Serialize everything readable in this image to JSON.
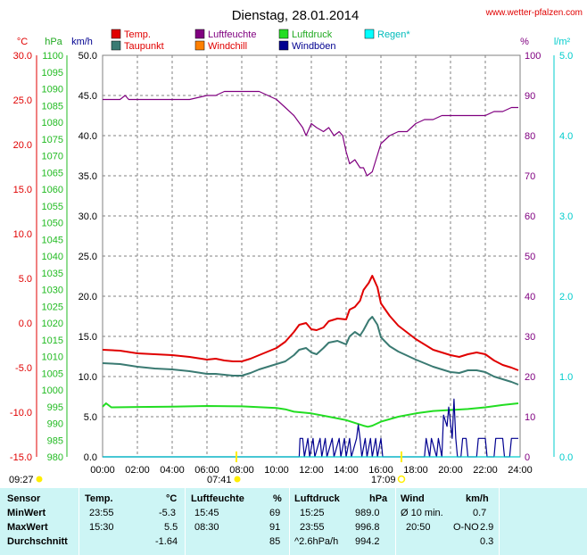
{
  "title": "Dienstag, 28.01.2014",
  "source": "www.wetter-pfalzen.com",
  "colors": {
    "temp": "#e00000",
    "taupunkt": "#3a7a72",
    "luftfeuchte": "#800080",
    "windchill": "#ff8000",
    "luftdruck": "#22dd22",
    "windboeen": "#000090",
    "regen": "#00cccc"
  },
  "legend": {
    "temp": "Temp.",
    "taupunkt": "Taupunkt",
    "luftfeuchte": "Luftfeuchte",
    "windchill": "Windchill",
    "luftdruck": "Luftdruck",
    "windboeen": "Windböen",
    "regen": "Regen*"
  },
  "units": {
    "temp": "°C",
    "pressure": "hPa",
    "wind": "km/h",
    "humidity": "%",
    "rain": "l/m²"
  },
  "sun": {
    "sunrise": "07:41",
    "sunset": "17:09",
    "moonrise": "09:27"
  },
  "chart_data": {
    "type": "line",
    "x_ticks": [
      "00:00",
      "02:00",
      "04:00",
      "06:00",
      "08:00",
      "10:00",
      "12:00",
      "14:00",
      "16:00",
      "18:00",
      "20:00",
      "22:00",
      "24:00"
    ],
    "axes": {
      "temp": {
        "labels": [
          "30.0",
          "25.0",
          "20.0",
          "15.0",
          "10.0",
          "5.0",
          "0.0",
          "-5.0",
          "-10.0",
          "-15.0"
        ],
        "min": -15,
        "max": 30
      },
      "pressure": {
        "labels": [
          "1100",
          "1095",
          "1090",
          "1085",
          "1080",
          "1075",
          "1070",
          "1065",
          "1060",
          "1055",
          "1050",
          "1045",
          "1040",
          "1035",
          "1030",
          "1025",
          "1020",
          "1015",
          "1010",
          "1005",
          "1000",
          "995",
          "990",
          "985",
          "980"
        ],
        "min": 980,
        "max": 1100
      },
      "wind": {
        "labels": [
          "50.0",
          "45.0",
          "40.0",
          "35.0",
          "30.0",
          "25.0",
          "20.0",
          "15.0",
          "10.0",
          "5.0",
          "0.0"
        ],
        "min": 0,
        "max": 50
      },
      "humidity": {
        "labels": [
          "100",
          "90",
          "80",
          "70",
          "60",
          "50",
          "40",
          "30",
          "20",
          "10",
          "0"
        ],
        "min": 0,
        "max": 100
      },
      "rain": {
        "labels": [
          "5.0",
          "4.0",
          "3.0",
          "2.0",
          "1.0",
          "0.0"
        ],
        "min": 0,
        "max": 5
      }
    },
    "series": [
      {
        "name": "Temp.",
        "axis": "temp",
        "x": [
          0,
          1,
          2,
          3,
          4,
          5,
          6,
          6.5,
          7,
          7.5,
          8,
          8.5,
          9,
          10,
          10.5,
          11,
          11.3,
          11.7,
          12,
          12.3,
          12.7,
          13,
          13.5,
          14,
          14.2,
          14.5,
          14.8,
          15,
          15.3,
          15.5,
          15.8,
          16,
          16.5,
          17,
          18,
          19,
          20,
          20.5,
          21,
          21.5,
          22,
          22.5,
          23,
          23.5,
          23.9
        ],
        "values": [
          -3.0,
          -3.1,
          -3.4,
          -3.5,
          -3.6,
          -3.8,
          -4.1,
          -4.0,
          -4.2,
          -4.3,
          -4.3,
          -4.0,
          -3.6,
          -2.8,
          -2.1,
          -1.0,
          -0.2,
          0.0,
          -0.7,
          -0.8,
          -0.5,
          0.2,
          0.5,
          0.4,
          1.5,
          1.8,
          2.5,
          3.7,
          4.5,
          5.3,
          4.0,
          2.2,
          0.8,
          -0.3,
          -1.8,
          -3.0,
          -3.6,
          -3.8,
          -3.5,
          -3.3,
          -3.5,
          -4.2,
          -4.7,
          -5.0,
          -5.3
        ]
      },
      {
        "name": "Taupunkt",
        "axis": "temp",
        "x": [
          0,
          1,
          2,
          3,
          4,
          5,
          6,
          6.5,
          7,
          7.5,
          8,
          8.5,
          9,
          10,
          10.5,
          11,
          11.3,
          11.7,
          12,
          12.3,
          12.7,
          13,
          13.5,
          14,
          14.2,
          14.5,
          14.8,
          15,
          15.3,
          15.5,
          15.8,
          16,
          16.5,
          17,
          18,
          19,
          20,
          20.5,
          21,
          21.5,
          22,
          22.5,
          23,
          23.5,
          23.9
        ],
        "values": [
          -4.5,
          -4.6,
          -4.9,
          -5.1,
          -5.2,
          -5.4,
          -5.7,
          -5.7,
          -5.8,
          -5.9,
          -5.9,
          -5.6,
          -5.2,
          -4.6,
          -4.3,
          -3.6,
          -3.0,
          -2.8,
          -3.3,
          -3.5,
          -2.8,
          -2.2,
          -2.0,
          -2.4,
          -1.5,
          -1.0,
          -1.4,
          -0.8,
          0.3,
          0.7,
          -0.2,
          -1.6,
          -2.6,
          -3.2,
          -4.1,
          -4.9,
          -5.5,
          -5.6,
          -5.3,
          -5.3,
          -5.5,
          -6.0,
          -6.3,
          -6.6,
          -6.9
        ]
      },
      {
        "name": "Luftfeuchte",
        "axis": "humidity",
        "x": [
          0,
          1,
          1.3,
          1.5,
          2,
          4,
          5,
          6,
          6.5,
          7,
          7.5,
          8,
          8.5,
          9,
          9.5,
          10,
          10.5,
          11,
          11.5,
          11.7,
          12,
          12.3,
          12.7,
          13,
          13.3,
          13.6,
          13.8,
          14,
          14.2,
          14.5,
          14.8,
          15,
          15.2,
          15.5,
          16,
          16.5,
          17,
          17.5,
          18,
          18.5,
          19,
          19.5,
          20,
          20.5,
          21,
          21.5,
          22,
          22.5,
          23,
          23.5,
          23.9
        ],
        "values": [
          89,
          89,
          90,
          89,
          89,
          89,
          89,
          90,
          90,
          91,
          91,
          91,
          91,
          91,
          90,
          89,
          87,
          85,
          82,
          80,
          83,
          82,
          81,
          82,
          80,
          81,
          80,
          76,
          73,
          74,
          72,
          72,
          70,
          71,
          78,
          80,
          81,
          81,
          83,
          84,
          84,
          85,
          85,
          85,
          85,
          85,
          85,
          86,
          86,
          87,
          87
        ]
      },
      {
        "name": "Luftdruck",
        "axis": "pressure",
        "x": [
          0,
          0.2,
          0.5,
          2,
          4,
          6,
          8,
          10,
          10.5,
          11,
          12,
          13,
          14,
          15,
          15.25,
          15.5,
          16,
          17,
          18,
          19,
          20,
          21,
          22,
          23,
          23.9
        ],
        "values": [
          995.0,
          996.0,
          994.8,
          994.9,
          995.0,
          995.2,
          995.1,
          994.6,
          994.2,
          993.5,
          993.0,
          992.0,
          991.0,
          989.3,
          989.0,
          989.3,
          990.5,
          992.0,
          993.0,
          993.7,
          994.0,
          994.3,
          994.8,
          995.5,
          996.0
        ]
      },
      {
        "name": "Windböen",
        "axis": "wind",
        "x": [
          0,
          11,
          11.3,
          11.35,
          11.5,
          11.6,
          11.8,
          11.9,
          12.1,
          12.2,
          12.5,
          12.6,
          12.8,
          12.9,
          13.2,
          13.3,
          13.6,
          13.7,
          13.9,
          14.0,
          14.2,
          14.3,
          14.6,
          14.7,
          14.8,
          14.9,
          15.1,
          15.2,
          15.4,
          15.5,
          15.7,
          15.8,
          16.0,
          16.1,
          17.5,
          18.5,
          18.6,
          18.8,
          18.9,
          19.2,
          19.3,
          19.5,
          19.6,
          19.8,
          19.9,
          20.1,
          20.2,
          20.3,
          20.4,
          20.6,
          20.7,
          20.9,
          21.0,
          21.5,
          21.6,
          22.0,
          22.1,
          22.5,
          22.6,
          23.0,
          23.1,
          23.4,
          23.5,
          23.9
        ],
        "values": [
          0,
          0,
          0,
          2.3,
          2.3,
          0,
          2.3,
          0,
          2.3,
          0,
          2.3,
          0,
          2.3,
          0,
          2.3,
          0,
          2.3,
          0,
          2.3,
          0,
          2.3,
          0,
          2.3,
          4.0,
          2.3,
          0,
          2.3,
          0,
          2.3,
          0,
          2.3,
          0,
          2.3,
          0,
          0,
          0,
          2.3,
          0,
          2.3,
          0,
          2.3,
          0,
          5.2,
          3.8,
          6.2,
          2.3,
          7.2,
          2.3,
          0,
          0,
          2.3,
          2.3,
          0,
          0,
          2.3,
          2.3,
          0,
          0,
          2.3,
          2.3,
          0,
          0,
          2.3,
          2.3
        ]
      },
      {
        "name": "Regen*",
        "axis": "rain",
        "x": [
          0,
          24
        ],
        "values": [
          0,
          0
        ]
      }
    ]
  },
  "table": {
    "headers": {
      "sensor": "Sensor",
      "temp": "Temp.",
      "temp_unit": "°C",
      "hum": "Luftfeuchte",
      "hum_unit": "%",
      "press": "Luftdruck",
      "press_unit": "hPa",
      "wind": "Wind",
      "wind_unit": "km/h"
    },
    "rows": [
      {
        "label": "MinWert",
        "t_time": "23:55",
        "t_val": "-5.3",
        "h_time": "15:45",
        "h_val": "69",
        "p_time": "15:25",
        "p_val": "989.0",
        "w_label": "Ø 10 min.",
        "w_dir": "",
        "w_val": "0.7"
      },
      {
        "label": "MaxWert",
        "t_time": "15:30",
        "t_val": "5.5",
        "h_time": "08:30",
        "h_val": "91",
        "p_time": "23:55",
        "p_val": "996.8",
        "w_label": "20:50",
        "w_dir": "O-NO",
        "w_val": "2.9"
      },
      {
        "label": "Durchschnitt",
        "t_time": "",
        "t_val": "-1.64",
        "h_time": "",
        "h_val": "85",
        "p_time": "^2.6hPa/h",
        "p_val": "994.2",
        "w_label": "",
        "w_dir": "",
        "w_val": "0.3"
      }
    ]
  }
}
